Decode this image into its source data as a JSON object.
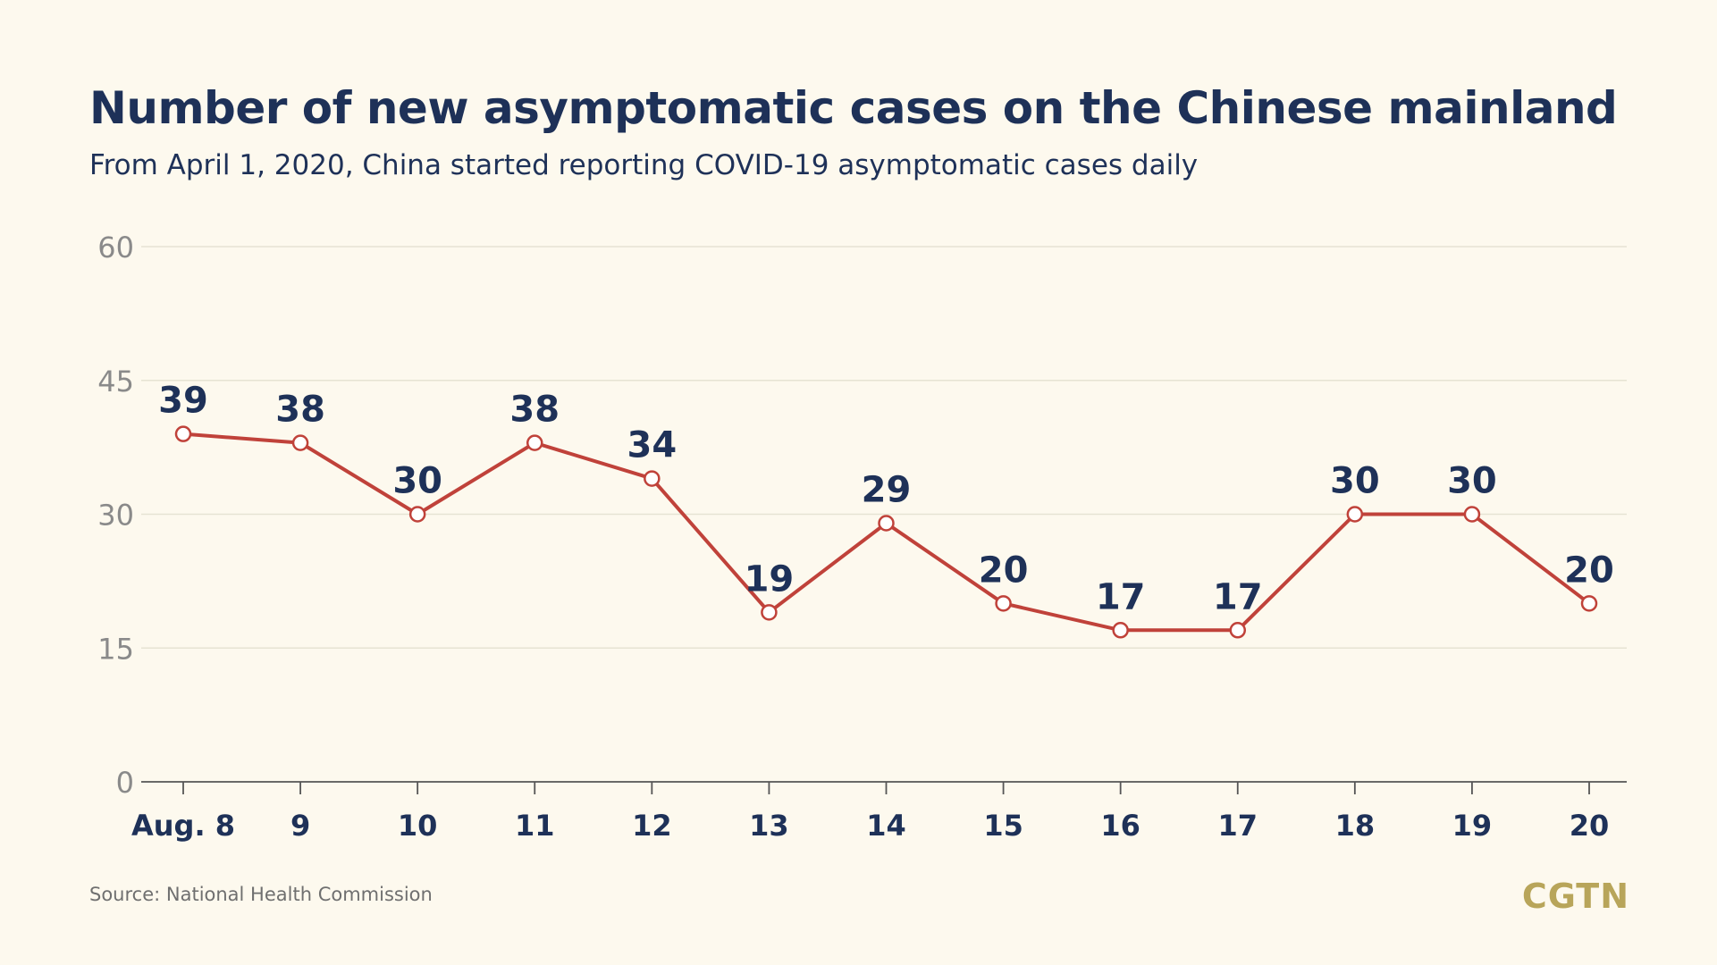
{
  "header": {
    "title": "Number of new asymptomatic cases on the Chinese mainland",
    "subtitle": "From April 1, 2020, China started reporting COVID-19 asymptomatic cases daily"
  },
  "footer": {
    "source": "Source: National Health Commission",
    "logo": "CGTN"
  },
  "colors": {
    "background": "#fdf9ee",
    "title": "#1e3158",
    "line": "#c0423a",
    "grid": "#e6e3d3",
    "axis_tick_label": "#8a8a8a",
    "logo": "#b8a55a"
  },
  "chart_data": {
    "type": "line",
    "title": "Number of new asymptomatic cases on the Chinese mainland",
    "subtitle": "From April 1, 2020, China started reporting COVID-19 asymptomatic cases daily",
    "xlabel": "",
    "ylabel": "",
    "categories": [
      "Aug. 8",
      "9",
      "10",
      "11",
      "12",
      "13",
      "14",
      "15",
      "16",
      "17",
      "18",
      "19",
      "20"
    ],
    "series": [
      {
        "values": [
          39,
          38,
          30,
          38,
          34,
          19,
          29,
          20,
          17,
          17,
          30,
          30,
          20
        ]
      }
    ],
    "ylim": [
      0,
      60
    ],
    "yticks": [
      0,
      15,
      30,
      45,
      60
    ],
    "grid": true,
    "data_labels": true
  }
}
